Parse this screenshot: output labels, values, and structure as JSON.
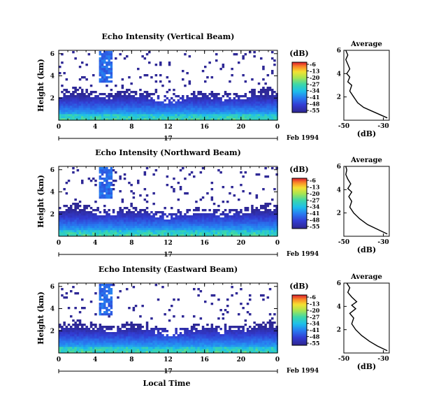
{
  "chart_data": [
    {
      "type": "heatmap",
      "title": "Echo Intensity (Vertical Beam)",
      "ylabel": "Height (km)",
      "x_ticks": [
        "0",
        "4",
        "8",
        "12",
        "16",
        "20",
        "0"
      ],
      "y_ticks": [
        "2",
        "4",
        "6"
      ],
      "date_day": "17",
      "date_label": "Feb 1994",
      "colorbar": {
        "unit": "(dB)",
        "ticks": [
          "-6",
          "-13",
          "-20",
          "-27",
          "-34",
          "-41",
          "-48",
          "-55"
        ],
        "range": [
          -55,
          -6
        ]
      },
      "average_profile": {
        "title": "Average",
        "xlabel": "(dB)",
        "x_ticks": [
          "-50",
          "-30"
        ],
        "y_ticks": [
          "2",
          "4",
          "6"
        ],
        "xlim": [
          -50,
          -27
        ],
        "ylim": [
          0,
          6
        ],
        "points": [
          [
            -28,
            0.2
          ],
          [
            -32,
            0.5
          ],
          [
            -36,
            0.8
          ],
          [
            -40,
            1.1
          ],
          [
            -43,
            1.5
          ],
          [
            -45,
            2.0
          ],
          [
            -47,
            2.5
          ],
          [
            -46,
            3.0
          ],
          [
            -48,
            3.3
          ],
          [
            -47,
            3.7
          ],
          [
            -48.5,
            4.0
          ],
          [
            -47,
            4.4
          ],
          [
            -48,
            4.8
          ],
          [
            -49,
            5.2
          ],
          [
            -48,
            5.6
          ],
          [
            -49,
            6.0
          ]
        ]
      }
    },
    {
      "type": "heatmap",
      "title": "Echo Intensity (Northward Beam)",
      "ylabel": "Height (km)",
      "x_ticks": [
        "0",
        "4",
        "8",
        "12",
        "16",
        "20",
        "0"
      ],
      "y_ticks": [
        "2",
        "4",
        "6"
      ],
      "date_day": "17",
      "date_label": "Feb 1994",
      "colorbar": {
        "unit": "(dB)",
        "ticks": [
          "-6",
          "-13",
          "-20",
          "-27",
          "-34",
          "-41",
          "-48",
          "-55"
        ],
        "range": [
          -55,
          -6
        ]
      },
      "average_profile": {
        "title": "Average",
        "xlabel": "(dB)",
        "x_ticks": [
          "-50",
          "-30"
        ],
        "y_ticks": [
          "2",
          "4",
          "6"
        ],
        "xlim": [
          -50,
          -27
        ],
        "ylim": [
          0,
          6
        ],
        "points": [
          [
            -28,
            0.2
          ],
          [
            -33,
            0.6
          ],
          [
            -38,
            1.0
          ],
          [
            -42,
            1.5
          ],
          [
            -45,
            2.0
          ],
          [
            -47,
            2.5
          ],
          [
            -46,
            3.0
          ],
          [
            -47.5,
            3.4
          ],
          [
            -46,
            3.8
          ],
          [
            -48,
            4.1
          ],
          [
            -46.5,
            4.5
          ],
          [
            -48,
            4.9
          ],
          [
            -49,
            5.3
          ],
          [
            -48.5,
            5.7
          ],
          [
            -49,
            6.0
          ]
        ]
      }
    },
    {
      "type": "heatmap",
      "title": "Echo Intensity (Eastward Beam)",
      "ylabel": "Height (km)",
      "xlabel": "Local Time",
      "x_ticks": [
        "0",
        "4",
        "8",
        "12",
        "16",
        "20",
        "0"
      ],
      "y_ticks": [
        "2",
        "4",
        "6"
      ],
      "date_day": "17",
      "date_label": "Feb 1994",
      "colorbar": {
        "unit": "(dB)",
        "ticks": [
          "-6",
          "-13",
          "-20",
          "-27",
          "-34",
          "-41",
          "-48",
          "-55"
        ],
        "range": [
          -55,
          -6
        ]
      },
      "average_profile": {
        "title": "Average",
        "xlabel": "(dB)",
        "x_ticks": [
          "-50",
          "-30"
        ],
        "y_ticks": [
          "2",
          "4",
          "6"
        ],
        "xlim": [
          -50,
          -27
        ],
        "ylim": [
          0,
          6
        ],
        "points": [
          [
            -28,
            0.2
          ],
          [
            -33,
            0.6
          ],
          [
            -37,
            1.0
          ],
          [
            -41,
            1.5
          ],
          [
            -44,
            2.0
          ],
          [
            -46,
            2.5
          ],
          [
            -45,
            3.0
          ],
          [
            -47,
            3.4
          ],
          [
            -44,
            3.8
          ],
          [
            -46,
            4.1
          ],
          [
            -43.5,
            4.4
          ],
          [
            -46,
            4.8
          ],
          [
            -48,
            5.2
          ],
          [
            -47,
            5.6
          ],
          [
            -48.5,
            6.0
          ]
        ]
      }
    }
  ]
}
